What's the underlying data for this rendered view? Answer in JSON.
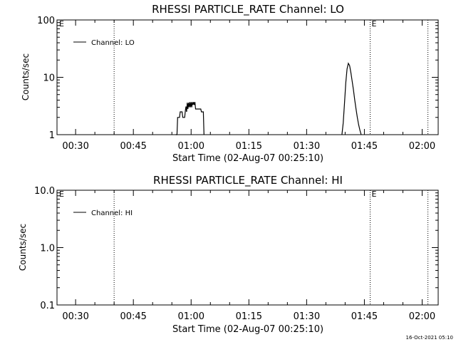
{
  "chart_data": [
    {
      "type": "line",
      "title": "RHESSI PARTICLE_RATE Channel: LO",
      "xlabel": "Start Time (02-Aug-07 00:25:10)",
      "ylabel": "Counts/sec",
      "yscale": "log",
      "ylim": [
        1,
        100
      ],
      "xlim": [
        "00:25:10",
        "02:04:10"
      ],
      "xticks": [
        "00:30",
        "00:45",
        "01:00",
        "01:15",
        "01:30",
        "01:45",
        "02:00"
      ],
      "yticks": [
        "1",
        "10",
        "100"
      ],
      "legend": "top-left",
      "grid": false,
      "vlines": [
        {
          "x": "00:40:00",
          "style": "dotted",
          "label": ""
        },
        {
          "x": "01:46:30",
          "style": "dotted",
          "label": "E"
        },
        {
          "x": "02:01:30",
          "style": "dotted",
          "label": ""
        }
      ],
      "corner_label": "E",
      "series": [
        {
          "name": "Channel: LO",
          "x": [
            "00:56:00",
            "00:56:20",
            "00:56:30",
            "00:57:00",
            "00:57:10",
            "00:57:40",
            "00:57:50",
            "00:58:20",
            "00:58:30",
            "00:58:40",
            "00:58:50",
            "00:59:00",
            "00:59:10",
            "00:59:20",
            "00:59:30",
            "00:59:40",
            "00:59:50",
            "01:00:00",
            "01:00:10",
            "01:00:20",
            "01:00:30",
            "01:00:40",
            "01:00:50",
            "01:01:00",
            "01:01:10",
            "01:02:30",
            "01:02:40",
            "01:03:10",
            "01:03:20"
          ],
          "y": [
            1.0,
            1.0,
            2.0,
            2.0,
            2.5,
            2.5,
            2.0,
            2.0,
            2.6,
            3.1,
            2.5,
            3.6,
            2.8,
            3.6,
            3.0,
            3.7,
            3.0,
            3.7,
            3.0,
            3.7,
            3.3,
            3.7,
            3.3,
            3.7,
            2.8,
            2.8,
            2.5,
            2.5,
            1.0
          ]
        },
        {
          "name": "",
          "x": [
            "01:39:10",
            "01:39:30",
            "01:39:50",
            "01:40:10",
            "01:40:30",
            "01:40:50",
            "01:41:10",
            "01:41:30",
            "01:41:50",
            "01:42:10",
            "01:42:30",
            "01:42:50",
            "01:43:10",
            "01:43:30",
            "01:43:50",
            "01:44:10"
          ],
          "y": [
            1.0,
            1.6,
            3.5,
            8.0,
            14.0,
            17.5,
            16.0,
            12.0,
            8.5,
            6.0,
            4.0,
            2.8,
            2.0,
            1.5,
            1.2,
            1.0
          ]
        }
      ]
    },
    {
      "type": "line",
      "title": "RHESSI PARTICLE_RATE Channel: HI",
      "xlabel": "Start Time (02-Aug-07 00:25:10)",
      "ylabel": "Counts/sec",
      "yscale": "log",
      "ylim": [
        0.1,
        10.0
      ],
      "xlim": [
        "00:25:10",
        "02:04:10"
      ],
      "xticks": [
        "00:30",
        "00:45",
        "01:00",
        "01:15",
        "01:30",
        "01:45",
        "02:00"
      ],
      "yticks": [
        "0.1",
        "1.0",
        "10.0"
      ],
      "legend": "top-left",
      "grid": false,
      "vlines": [
        {
          "x": "00:40:00",
          "style": "dotted",
          "label": ""
        },
        {
          "x": "01:46:30",
          "style": "dotted",
          "label": "E"
        },
        {
          "x": "02:01:30",
          "style": "dotted",
          "label": ""
        }
      ],
      "corner_label": "E",
      "series": [
        {
          "name": "Channel: HI",
          "x": [],
          "y": []
        }
      ]
    }
  ],
  "footer": {
    "timestamp": "16-Oct-2021 05:10"
  }
}
